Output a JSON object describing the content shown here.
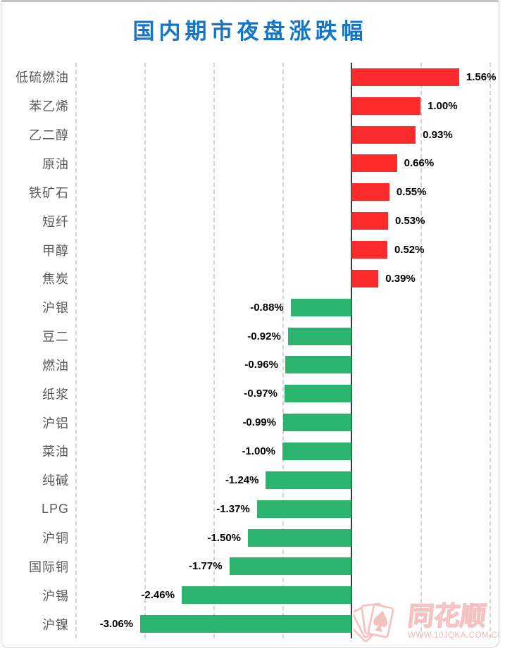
{
  "title": "国内期市夜盘涨跌幅",
  "colors": {
    "title": "#1674c5",
    "positive_bar": "#fd2b2b",
    "negative_bar": "#2bb46e",
    "gridline": "#d4d4d4",
    "zero_line": "#3a3a3a",
    "category_label": "#595959",
    "value_label": "#000000",
    "watermark": "#f5bdbd"
  },
  "watermark": {
    "brand": "同花顺",
    "url": "WWW.10JQKA.COM.CN"
  },
  "chart_data": {
    "type": "bar",
    "orientation": "horizontal",
    "title": "国内期市夜盘涨跌幅",
    "categories": [
      "低硫燃油",
      "苯乙烯",
      "乙二醇",
      "原油",
      "铁矿石",
      "短纤",
      "甲醇",
      "焦炭",
      "沪银",
      "豆二",
      "燃油",
      "纸浆",
      "沪铝",
      "菜油",
      "纯碱",
      "LPG",
      "沪铜",
      "国际铜",
      "沪锡",
      "沪镍"
    ],
    "values": [
      1.56,
      1.0,
      0.93,
      0.66,
      0.55,
      0.53,
      0.52,
      0.39,
      -0.88,
      -0.92,
      -0.96,
      -0.97,
      -0.99,
      -1.0,
      -1.24,
      -1.37,
      -1.5,
      -1.77,
      -2.46,
      -3.06
    ],
    "value_labels": [
      "1.56%",
      "1.00%",
      "0.93%",
      "0.66%",
      "0.55%",
      "0.53%",
      "0.52%",
      "0.39%",
      "-0.88%",
      "-0.92%",
      "-0.96%",
      "-0.97%",
      "-0.99%",
      "-1.00%",
      "-1.24%",
      "-1.37%",
      "-1.50%",
      "-1.77%",
      "-2.46%",
      "-3.06%"
    ],
    "xlim": [
      -4,
      2
    ],
    "gridline_interval": 1,
    "grid": true,
    "legend": false,
    "data_labels": true,
    "positive_color": "#fd2b2b",
    "negative_color": "#2bb46e"
  }
}
